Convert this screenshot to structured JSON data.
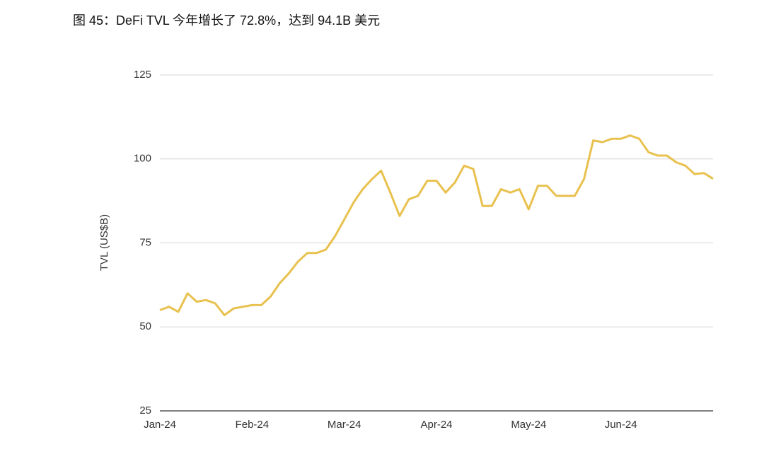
{
  "chart_data": {
    "type": "line",
    "title": "图 45：DeFi TVL 今年增长了 72.8%，达到 94.1B 美元",
    "y_label": "TVL (US$B)",
    "categories": [
      "Jan-24",
      null,
      null,
      null,
      null,
      null,
      null,
      null,
      null,
      null,
      "Feb-24",
      null,
      null,
      null,
      null,
      null,
      null,
      null,
      null,
      null,
      "Mar-24",
      null,
      null,
      null,
      null,
      null,
      null,
      null,
      null,
      null,
      "Apr-24",
      null,
      null,
      null,
      null,
      null,
      null,
      null,
      null,
      null,
      "May-24",
      null,
      null,
      null,
      null,
      null,
      null,
      null,
      null,
      null,
      "Jun-24",
      null,
      null,
      null,
      null,
      null,
      null,
      null,
      null,
      null,
      null
    ],
    "series": [
      {
        "name": "TVL",
        "color": "#e8c14e",
        "values": [
          55,
          56,
          54.5,
          60,
          57.5,
          58,
          57,
          53.5,
          55.5,
          56,
          56.5,
          56.5,
          59,
          63,
          66,
          69.5,
          72,
          72,
          73,
          77,
          82,
          87,
          91,
          94,
          96.5,
          90,
          83,
          88,
          89,
          93.5,
          93.5,
          90,
          93,
          98,
          97,
          86,
          86,
          91,
          90,
          91,
          85,
          92,
          92,
          89,
          89,
          89,
          94,
          105.5,
          105,
          106,
          106,
          107,
          106,
          102,
          101,
          101,
          99,
          98,
          95.5,
          95.8,
          94.1
        ]
      }
    ],
    "ylim": [
      25,
      125
    ],
    "yticks": [
      25,
      50,
      75,
      100,
      125
    ],
    "grid": true
  }
}
